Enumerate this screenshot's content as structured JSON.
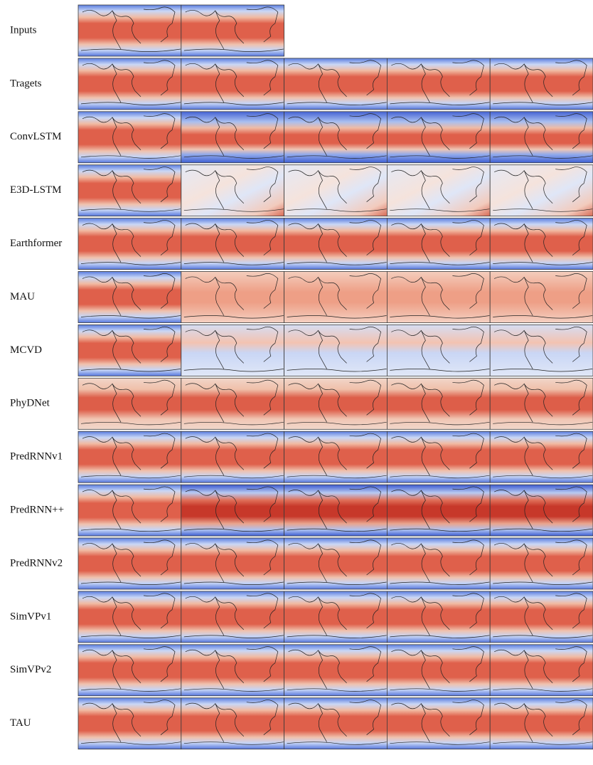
{
  "rows": [
    {
      "label": "Inputs"
    },
    {
      "label": "Tragets"
    },
    {
      "label": "ConvLSTM"
    },
    {
      "label": "E3D-LSTM"
    },
    {
      "label": "Earthformer"
    },
    {
      "label": "MAU"
    },
    {
      "label": "MCVD"
    },
    {
      "label": "PhyDNet"
    },
    {
      "label": "PredRNNv1"
    },
    {
      "label": "PredRNN++"
    },
    {
      "label": "PredRNNv2"
    },
    {
      "label": "SimVPv1"
    },
    {
      "label": "SimVPv2"
    },
    {
      "label": "TAU"
    }
  ]
}
